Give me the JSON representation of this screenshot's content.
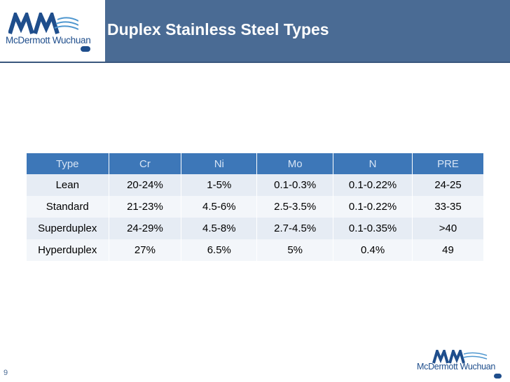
{
  "brand": {
    "name": "McDermott Wuchuan",
    "logo_colors": {
      "primary": "#1f4e8c",
      "accent": "#4f97cf"
    }
  },
  "slide": {
    "title": "Duplex Stainless Steel Types",
    "page_number": "9"
  },
  "table": {
    "headers": [
      "Type",
      "Cr",
      "Ni",
      "Mo",
      "N",
      "PRE"
    ],
    "rows": [
      [
        "Lean",
        "20-24%",
        "1-5%",
        "0.1-0.3%",
        "0.1-0.22%",
        "24-25"
      ],
      [
        "Standard",
        "21-23%",
        "4.5-6%",
        "2.5-3.5%",
        "0.1-0.22%",
        "33-35"
      ],
      [
        "Superduplex",
        "24-29%",
        "4.5-8%",
        "2.7-4.5%",
        "0.1-0.35%",
        ">40"
      ],
      [
        "Hyperduplex",
        "27%",
        "6.5%",
        "5%",
        "0.4%",
        "49"
      ]
    ]
  },
  "colors": {
    "header_bar": "#4a6b94",
    "table_header": "#3d77b8"
  }
}
